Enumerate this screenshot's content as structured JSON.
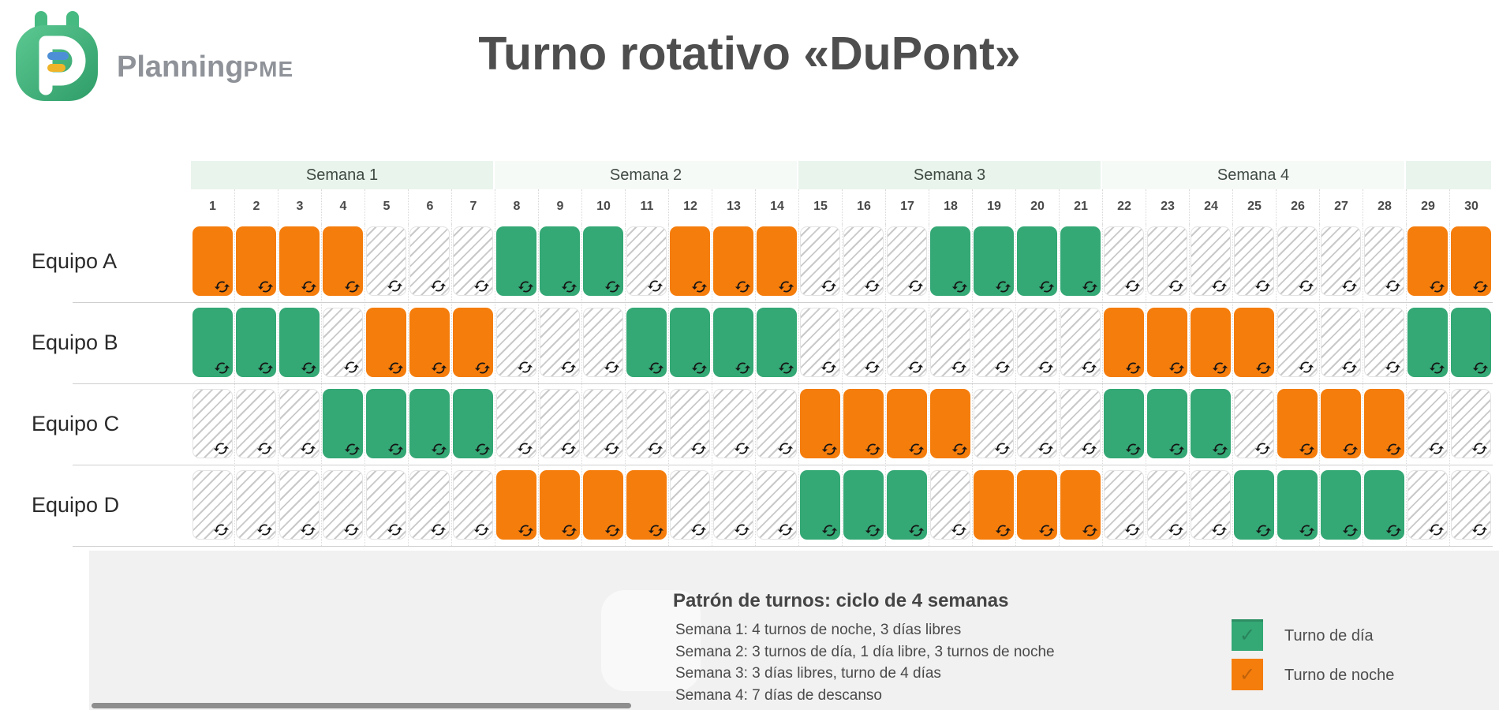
{
  "header": {
    "brand_main": "Planning",
    "brand_suffix": "PME",
    "title": "Turno rotativo «DuPont»"
  },
  "chart_data": {
    "type": "table",
    "title": "Turno rotativo «DuPont»",
    "weeks": [
      {
        "label": "Semana 1",
        "span": 7
      },
      {
        "label": "Semana 2",
        "span": 7
      },
      {
        "label": "Semana 3",
        "span": 7
      },
      {
        "label": "Semana 4",
        "span": 7
      },
      {
        "label": "",
        "span": 2
      }
    ],
    "day_numbers": [
      1,
      2,
      3,
      4,
      5,
      6,
      7,
      8,
      9,
      10,
      11,
      12,
      13,
      14,
      15,
      16,
      17,
      18,
      19,
      20,
      21,
      22,
      23,
      24,
      25,
      26,
      27,
      28,
      29,
      30
    ],
    "rows": [
      {
        "team": "Equipo A",
        "pattern": "NNNN---DDD-NNN---DDDD-------NN"
      },
      {
        "team": "Equipo B",
        "pattern": "DDD-NNN---DDDD-------NNNN---DD"
      },
      {
        "team": "Equipo C",
        "pattern": "---DDDD-------NNNN---DDD-NNN--"
      },
      {
        "team": "Equipo D",
        "pattern": "-------NNNN---DDD-NNN---DDDD--"
      }
    ],
    "cell_states": {
      "N": "night",
      "D": "day",
      "-": "off"
    },
    "colors": {
      "day": "#34A875",
      "night": "#F57D0C",
      "off_hatch": "#C9C9C9",
      "week_odd_bg": "#E9F4EC",
      "week_even_bg": "#F6FAF7"
    },
    "cell_icon": "repeat-icon",
    "legend_position": "bottom-right",
    "legend": [
      {
        "label": "Turno de día",
        "color": "#34A875"
      },
      {
        "label": "Turno de noche",
        "color": "#F57D0C"
      }
    ]
  },
  "pattern_notes": {
    "title": "Patrón de turnos: ciclo de 4 semanas",
    "lines": [
      "Semana 1: 4 turnos de noche, 3 días libres",
      "Semana 2: 3 turnos de día, 1 día libre, 3 turnos de noche",
      "Semana 3: 3 días libres, turno de 4 días",
      "Semana 4: 7 días de descanso"
    ]
  },
  "icons": {
    "check": "✓"
  }
}
